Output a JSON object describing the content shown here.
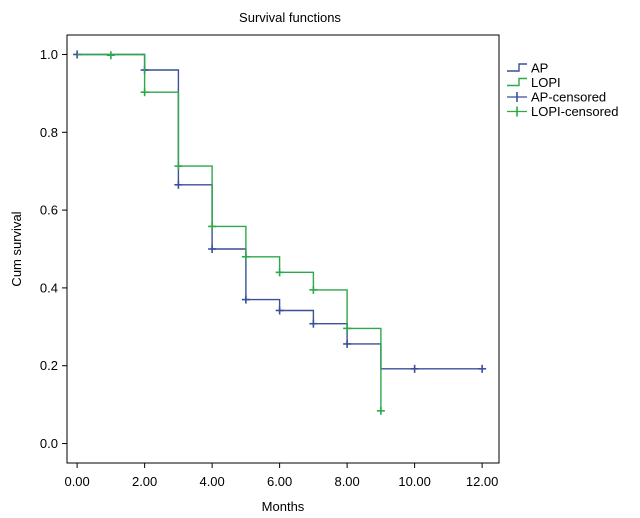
{
  "chart_data": {
    "type": "line",
    "title": "Survival functions",
    "xlabel": "Months",
    "ylabel": "Cum survival",
    "xlim": [
      -0.3,
      12.5
    ],
    "ylim": [
      -0.05,
      1.05
    ],
    "x_ticks": [
      {
        "value": 0,
        "label": "0.00"
      },
      {
        "value": 2,
        "label": "2.00"
      },
      {
        "value": 4,
        "label": "4.00"
      },
      {
        "value": 6,
        "label": "6.00"
      },
      {
        "value": 8,
        "label": "8.00"
      },
      {
        "value": 10,
        "label": "10.00"
      },
      {
        "value": 12,
        "label": "12.00"
      }
    ],
    "y_ticks": [
      {
        "value": 0,
        "label": "0.0"
      },
      {
        "value": 0.2,
        "label": "0.2"
      },
      {
        "value": 0.4,
        "label": "0.4"
      },
      {
        "value": 0.6,
        "label": "0.6"
      },
      {
        "value": 0.8,
        "label": "0.8"
      },
      {
        "value": 1.0,
        "label": "1.0"
      }
    ],
    "grid": false,
    "legend_position": "right",
    "series": [
      {
        "name": "AP",
        "color": "#3b4f9b",
        "step": [
          [
            0,
            1.0
          ],
          [
            2,
            1.0
          ],
          [
            2,
            0.96
          ],
          [
            3,
            0.96
          ],
          [
            3,
            0.665
          ],
          [
            4,
            0.665
          ],
          [
            4,
            0.5
          ],
          [
            5,
            0.5
          ],
          [
            5,
            0.37
          ],
          [
            6,
            0.37
          ],
          [
            6,
            0.342
          ],
          [
            7,
            0.342
          ],
          [
            7,
            0.308
          ],
          [
            8,
            0.308
          ],
          [
            8,
            0.256
          ],
          [
            9,
            0.256
          ],
          [
            9,
            0.192
          ],
          [
            12,
            0.192
          ]
        ],
        "censored": [
          [
            0,
            1.0
          ],
          [
            2,
            0.96
          ],
          [
            3,
            0.665
          ],
          [
            4,
            0.5
          ],
          [
            5,
            0.37
          ],
          [
            6,
            0.342
          ],
          [
            7,
            0.308
          ],
          [
            8,
            0.256
          ],
          [
            10,
            0.192
          ],
          [
            12,
            0.192
          ]
        ]
      },
      {
        "name": "LOPI",
        "color": "#2ea84a",
        "step": [
          [
            0,
            1.0
          ],
          [
            2,
            1.0
          ],
          [
            2,
            0.903
          ],
          [
            3,
            0.903
          ],
          [
            3,
            0.713
          ],
          [
            4,
            0.713
          ],
          [
            4,
            0.558
          ],
          [
            5,
            0.558
          ],
          [
            5,
            0.48
          ],
          [
            6,
            0.48
          ],
          [
            6,
            0.44
          ],
          [
            7,
            0.44
          ],
          [
            7,
            0.395
          ],
          [
            8,
            0.395
          ],
          [
            8,
            0.296
          ],
          [
            9,
            0.296
          ],
          [
            9,
            0.084
          ]
        ],
        "censored": [
          [
            1,
            0.998
          ],
          [
            2,
            0.903
          ],
          [
            3,
            0.713
          ],
          [
            4,
            0.558
          ],
          [
            5,
            0.48
          ],
          [
            6,
            0.44
          ],
          [
            7,
            0.395
          ],
          [
            8,
            0.296
          ],
          [
            9,
            0.084
          ]
        ]
      }
    ],
    "legend": [
      {
        "label": "AP",
        "kind": "line",
        "color": "#3b4f9b"
      },
      {
        "label": "LOPI",
        "kind": "line",
        "color": "#2ea84a"
      },
      {
        "label": "AP-censored",
        "kind": "marker",
        "color": "#3b4f9b"
      },
      {
        "label": "LOPI-censored",
        "kind": "marker",
        "color": "#2ea84a"
      }
    ]
  }
}
